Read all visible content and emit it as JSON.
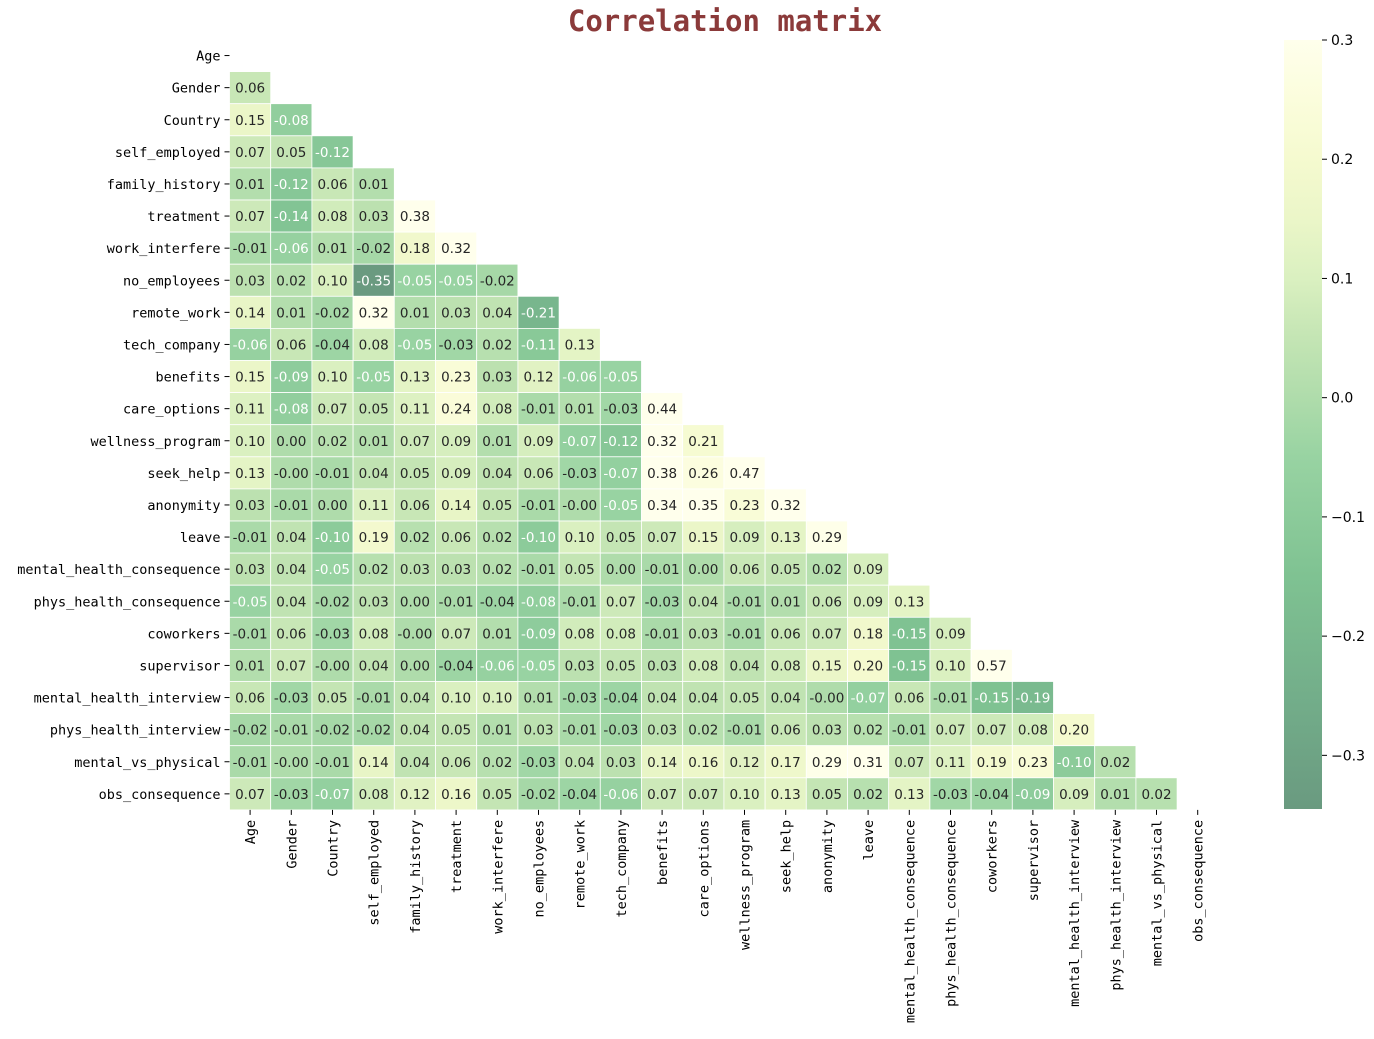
{
  "chart_data": {
    "type": "heatmap",
    "title": "Correlation matrix",
    "title_color": "#8b3a3a",
    "variables": [
      "Age",
      "Gender",
      "Country",
      "self_employed",
      "family_history",
      "treatment",
      "work_interfere",
      "no_employees",
      "remote_work",
      "tech_company",
      "benefits",
      "care_options",
      "wellness_program",
      "seek_help",
      "anonymity",
      "leave",
      "mental_health_consequence",
      "phys_health_consequence",
      "coworkers",
      "supervisor",
      "mental_health_interview",
      "phys_health_interview",
      "mental_vs_physical",
      "obs_consequence"
    ],
    "lower_triangle_values": [
      [],
      [
        "0.06"
      ],
      [
        "0.15",
        "-0.08"
      ],
      [
        "0.07",
        "0.05",
        "-0.12"
      ],
      [
        "0.01",
        "-0.12",
        "0.06",
        "0.01"
      ],
      [
        "0.07",
        "-0.14",
        "0.08",
        "0.03",
        "0.38"
      ],
      [
        "-0.01",
        "-0.06",
        "0.01",
        "-0.02",
        "0.18",
        "0.32"
      ],
      [
        "0.03",
        "0.02",
        "0.10",
        "-0.35",
        "-0.05",
        "-0.05",
        "-0.02"
      ],
      [
        "0.14",
        "0.01",
        "-0.02",
        "0.32",
        "0.01",
        "0.03",
        "0.04",
        "-0.21"
      ],
      [
        "-0.06",
        "0.06",
        "-0.04",
        "0.08",
        "-0.05",
        "-0.03",
        "0.02",
        "-0.11",
        "0.13"
      ],
      [
        "0.15",
        "-0.09",
        "0.10",
        "-0.05",
        "0.13",
        "0.23",
        "0.03",
        "0.12",
        "-0.06",
        "-0.05"
      ],
      [
        "0.11",
        "-0.08",
        "0.07",
        "0.05",
        "0.11",
        "0.24",
        "0.08",
        "-0.01",
        "0.01",
        "-0.03",
        "0.44"
      ],
      [
        "0.10",
        "0.00",
        "0.02",
        "0.01",
        "0.07",
        "0.09",
        "0.01",
        "0.09",
        "-0.07",
        "-0.12",
        "0.32",
        "0.21"
      ],
      [
        "0.13",
        "-0.00",
        "-0.01",
        "0.04",
        "0.05",
        "0.09",
        "0.04",
        "0.06",
        "-0.03",
        "-0.07",
        "0.38",
        "0.26",
        "0.47"
      ],
      [
        "0.03",
        "-0.01",
        "0.00",
        "0.11",
        "0.06",
        "0.14",
        "0.05",
        "-0.01",
        "-0.00",
        "-0.05",
        "0.34",
        "0.35",
        "0.23",
        "0.32"
      ],
      [
        "-0.01",
        "0.04",
        "-0.10",
        "0.19",
        "0.02",
        "0.06",
        "0.02",
        "-0.10",
        "0.10",
        "0.05",
        "0.07",
        "0.15",
        "0.09",
        "0.13",
        "0.29"
      ],
      [
        "0.03",
        "0.04",
        "-0.05",
        "0.02",
        "0.03",
        "0.03",
        "0.02",
        "-0.01",
        "0.05",
        "0.00",
        "-0.01",
        "0.00",
        "0.06",
        "0.05",
        "0.02",
        "0.09"
      ],
      [
        "-0.05",
        "0.04",
        "-0.02",
        "0.03",
        "0.00",
        "-0.01",
        "-0.04",
        "-0.08",
        "-0.01",
        "0.07",
        "-0.03",
        "0.04",
        "-0.01",
        "0.01",
        "0.06",
        "0.09",
        "0.13"
      ],
      [
        "-0.01",
        "0.06",
        "-0.03",
        "0.08",
        "-0.00",
        "0.07",
        "0.01",
        "-0.09",
        "0.08",
        "0.08",
        "-0.01",
        "0.03",
        "-0.01",
        "0.06",
        "0.07",
        "0.18",
        "-0.15",
        "0.09"
      ],
      [
        "0.01",
        "0.07",
        "-0.00",
        "0.04",
        "0.00",
        "-0.04",
        "-0.06",
        "-0.05",
        "0.03",
        "0.05",
        "0.03",
        "0.08",
        "0.04",
        "0.08",
        "0.15",
        "0.20",
        "-0.15",
        "0.10",
        "0.57"
      ],
      [
        "0.06",
        "-0.03",
        "0.05",
        "-0.01",
        "0.04",
        "0.10",
        "0.10",
        "0.01",
        "-0.03",
        "-0.04",
        "0.04",
        "0.04",
        "0.05",
        "0.04",
        "-0.00",
        "-0.07",
        "0.06",
        "-0.01",
        "-0.15",
        "-0.19"
      ],
      [
        "-0.02",
        "-0.01",
        "-0.02",
        "-0.02",
        "0.04",
        "0.05",
        "0.01",
        "0.03",
        "-0.01",
        "-0.03",
        "0.03",
        "0.02",
        "-0.01",
        "0.06",
        "0.03",
        "0.02",
        "-0.01",
        "0.07",
        "0.07",
        "0.08",
        "0.20"
      ],
      [
        "-0.01",
        "-0.00",
        "-0.01",
        "0.14",
        "0.04",
        "0.06",
        "0.02",
        "-0.03",
        "0.04",
        "0.03",
        "0.14",
        "0.16",
        "0.12",
        "0.17",
        "0.29",
        "0.31",
        "0.07",
        "0.11",
        "0.19",
        "0.23",
        "-0.10",
        "0.02"
      ],
      [
        "0.07",
        "-0.03",
        "-0.07",
        "0.08",
        "0.12",
        "0.16",
        "0.05",
        "-0.02",
        "-0.04",
        "-0.06",
        "0.07",
        "0.07",
        "0.10",
        "0.13",
        "0.05",
        "0.02",
        "0.13",
        "-0.03",
        "-0.04",
        "-0.09",
        "0.09",
        "0.01",
        "0.02"
      ]
    ],
    "color_scale": {
      "vmin": -0.345,
      "vmax": 0.3,
      "stops": [
        {
          "v": -0.345,
          "color": "#6a9a80"
        },
        {
          "v": -0.25,
          "color": "#73ae8a"
        },
        {
          "v": -0.15,
          "color": "#7fc292"
        },
        {
          "v": -0.05,
          "color": "#98d3a2"
        },
        {
          "v": 0.0,
          "color": "#afdcab"
        },
        {
          "v": 0.05,
          "color": "#c4e5b4"
        },
        {
          "v": 0.1,
          "color": "#daf0c0"
        },
        {
          "v": 0.15,
          "color": "#ebf6c8"
        },
        {
          "v": 0.2,
          "color": "#f5facf"
        },
        {
          "v": 0.25,
          "color": "#fbfddc"
        },
        {
          "v": 0.3,
          "color": "#ffffec"
        }
      ]
    },
    "colorbar_ticks": [
      "0.3",
      "0.2",
      "0.1",
      "0.0",
      "−0.1",
      "−0.2",
      "−0.3"
    ],
    "colorbar_tick_values": [
      0.3,
      0.2,
      0.1,
      0.0,
      -0.1,
      -0.2,
      -0.3
    ],
    "annotation_light_text_below": -0.045
  }
}
